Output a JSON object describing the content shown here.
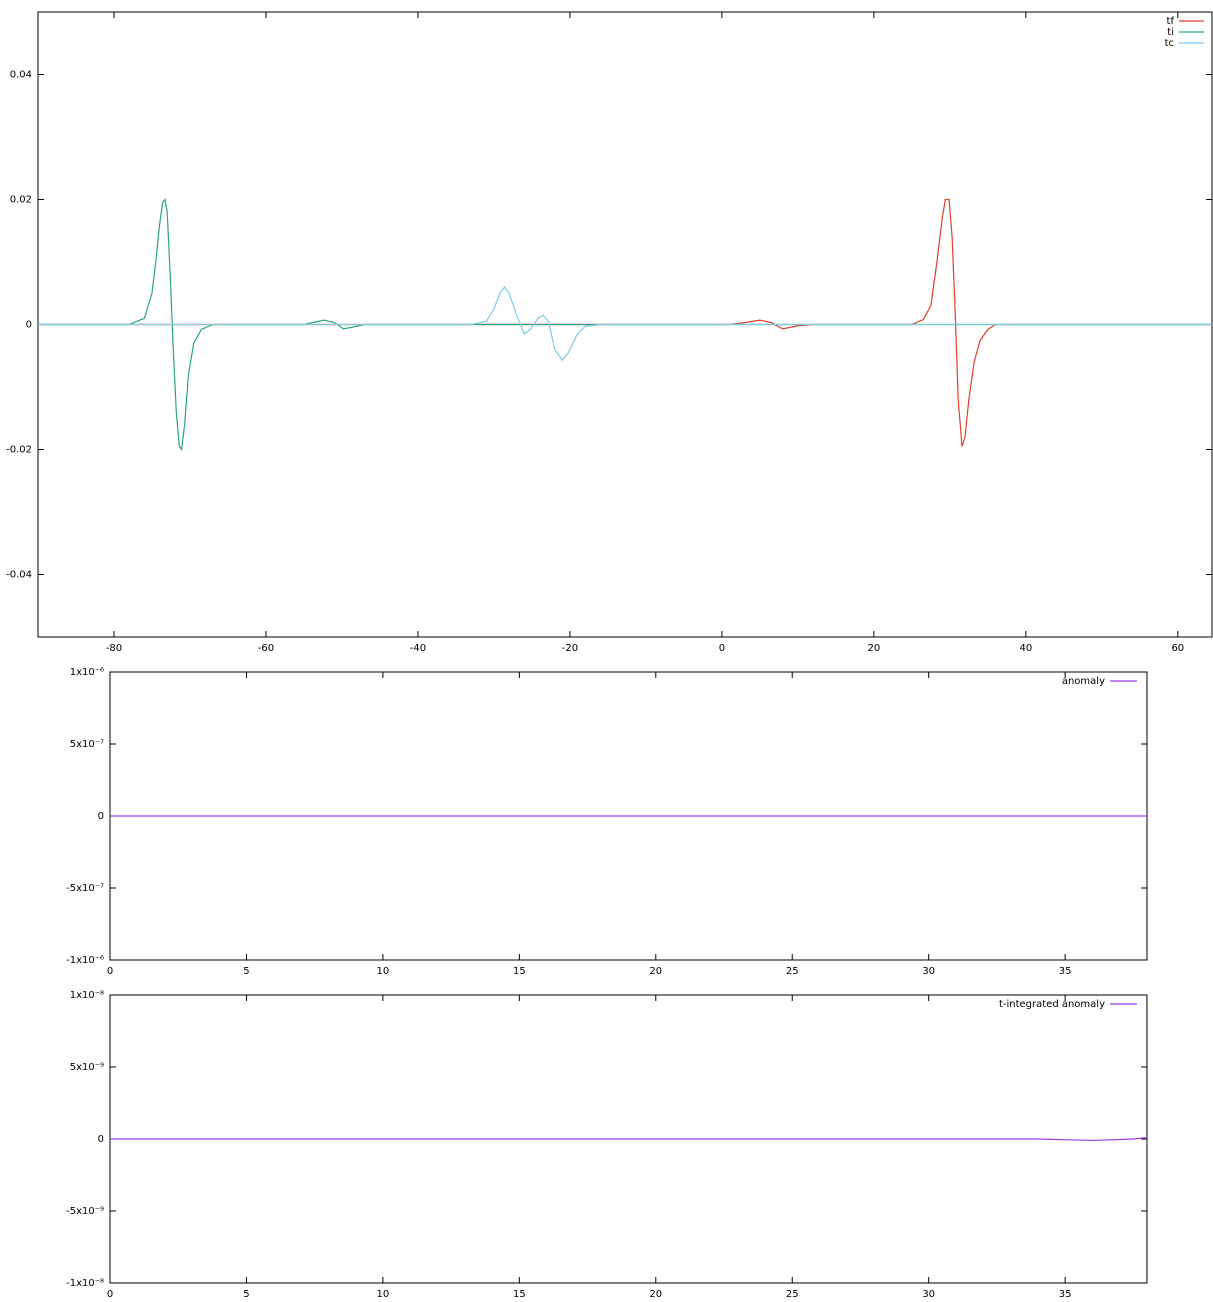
{
  "chart_data": [
    {
      "type": "line",
      "xlim": [
        -90,
        64.5
      ],
      "ylim": [
        -0.05,
        0.05
      ],
      "xticks": [
        -80,
        -60,
        -40,
        -20,
        0,
        20,
        40,
        60
      ],
      "yticks": [
        -0.04,
        -0.02,
        0,
        0.02,
        0.04
      ],
      "legend": "top-right",
      "series": [
        {
          "name": "tf",
          "color": "#e0402c",
          "x": [
            -90,
            1,
            3,
            5,
            6.5,
            8,
            10,
            12,
            25,
            26.5,
            27.5,
            28.3,
            29,
            29.4,
            29.9,
            30.3,
            30.7,
            31.1,
            31.6,
            32,
            32.5,
            33.2,
            34,
            35,
            36,
            64.5
          ],
          "values": [
            0,
            0,
            0.0003,
            0.0007,
            0.0003,
            -0.0007,
            -0.0002,
            0,
            0,
            0.0008,
            0.003,
            0.01,
            0.017,
            0.02,
            0.02,
            0.014,
            0.002,
            -0.012,
            -0.0195,
            -0.018,
            -0.012,
            -0.006,
            -0.0025,
            -0.0008,
            0,
            0
          ]
        },
        {
          "name": "ti",
          "color": "#2aa57a",
          "x": [
            -90,
            -78,
            -76,
            -75,
            -74.5,
            -74,
            -73.6,
            -73.3,
            -73,
            -72.6,
            -72.2,
            -71.8,
            -71.4,
            -71.1,
            -70.7,
            -70.2,
            -69.5,
            -68.5,
            -67,
            -55,
            -53.5,
            -52.3,
            -51,
            -49.8,
            -48.5,
            -47,
            64.5
          ],
          "values": [
            0,
            0,
            0.001,
            0.005,
            0.01,
            0.016,
            0.0195,
            0.02,
            0.018,
            0.008,
            -0.004,
            -0.014,
            -0.0195,
            -0.02,
            -0.016,
            -0.008,
            -0.003,
            -0.0008,
            0,
            0,
            0.0004,
            0.0007,
            0.0003,
            -0.0007,
            -0.0004,
            0,
            0
          ]
        },
        {
          "name": "tc",
          "color": "#7ecbe8",
          "x": [
            -90,
            -33,
            -31,
            -30,
            -29.2,
            -28.6,
            -28,
            -27,
            -26,
            -25.2,
            -24.2,
            -23.5,
            -22.8,
            -22,
            -21,
            -20.2,
            -19,
            -18,
            -16,
            64.5
          ],
          "values": [
            0,
            0,
            0.0005,
            0.0025,
            0.005,
            0.006,
            0.005,
            0.0015,
            -0.0015,
            -0.0008,
            0.001,
            0.0015,
            0.0005,
            -0.004,
            -0.0057,
            -0.0045,
            -0.0015,
            -0.0003,
            0,
            0
          ]
        }
      ]
    },
    {
      "type": "line",
      "xlim": [
        0,
        38
      ],
      "ylim": [
        -1e-06,
        1e-06
      ],
      "xticks": [
        0,
        5,
        10,
        15,
        20,
        25,
        30,
        35
      ],
      "yticks": [
        {
          "value": -1e-06,
          "label": "-1x10⁻⁶"
        },
        {
          "value": -5e-07,
          "label": "-5x10⁻⁷"
        },
        0,
        {
          "value": 5e-07,
          "label": "5x10⁻⁷"
        },
        {
          "value": 1e-06,
          "label": "1x10⁻⁶"
        }
      ],
      "legend": "top-right",
      "series": [
        {
          "name": "anomaly",
          "color": "#a040e0",
          "x": [
            0,
            38
          ],
          "values": [
            0,
            0
          ]
        }
      ]
    },
    {
      "type": "line",
      "xlim": [
        0,
        38
      ],
      "ylim": [
        -1e-08,
        1e-08
      ],
      "xticks": [
        0,
        5,
        10,
        15,
        20,
        25,
        30,
        35
      ],
      "yticks": [
        {
          "value": -1e-08,
          "label": "-1x10⁻⁸"
        },
        {
          "value": -5e-09,
          "label": "-5x10⁻⁹"
        },
        0,
        {
          "value": 5e-09,
          "label": "5x10⁻⁹"
        },
        {
          "value": 1e-08,
          "label": "1x10⁻⁸"
        }
      ],
      "legend": "top-right",
      "series": [
        {
          "name": "t-integrated anomaly",
          "color": "#a040e0",
          "x": [
            0,
            34,
            36,
            37.5,
            38
          ],
          "values": [
            0,
            0,
            -1e-10,
            0,
            1e-10
          ]
        }
      ]
    }
  ]
}
